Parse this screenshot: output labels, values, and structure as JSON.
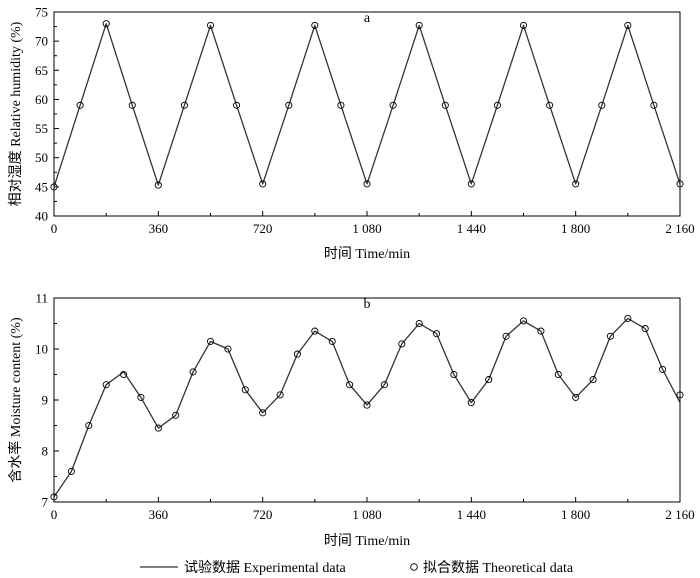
{
  "chart_data": [
    {
      "type": "line",
      "panel_label": "a",
      "xlabel": "时间 Time/min",
      "ylabel": "相对湿度 Relative humidity (%)",
      "xlim": [
        0,
        2160
      ],
      "ylim": [
        40,
        75
      ],
      "x_ticks": [
        0,
        360,
        720,
        1080,
        1440,
        1800,
        2160
      ],
      "x_tick_labels": [
        "0",
        "360",
        "720",
        "1 080",
        "1 440",
        "1 800",
        "2 160"
      ],
      "y_ticks": [
        40,
        45,
        50,
        55,
        60,
        65,
        70,
        75
      ],
      "y_tick_labels": [
        "40",
        "45",
        "50",
        "55",
        "60",
        "65",
        "70",
        "75"
      ],
      "grid": false,
      "series": [
        {
          "name": "试验数据 Experimental data",
          "style": "solid line",
          "x": [
            0,
            90,
            180,
            270,
            360,
            450,
            540,
            630,
            720,
            810,
            900,
            990,
            1080,
            1170,
            1260,
            1350,
            1440,
            1530,
            1620,
            1710,
            1800,
            1890,
            1980,
            2070,
            2160
          ],
          "y": [
            45.0,
            59.0,
            73.0,
            59.0,
            45.3,
            59.0,
            72.7,
            59.0,
            45.5,
            59.0,
            72.7,
            59.0,
            45.5,
            59.0,
            72.7,
            59.0,
            45.5,
            59.0,
            72.7,
            59.0,
            45.5,
            59.0,
            72.7,
            59.0,
            45.5
          ]
        },
        {
          "name": "拟合数据 Theoretical data",
          "style": "open circles",
          "x": [
            0,
            90,
            180,
            270,
            360,
            450,
            540,
            630,
            720,
            810,
            900,
            990,
            1080,
            1170,
            1260,
            1350,
            1440,
            1530,
            1620,
            1710,
            1800,
            1890,
            1980,
            2070,
            2160
          ],
          "y": [
            45.0,
            59.0,
            73.0,
            59.0,
            45.3,
            59.0,
            72.7,
            59.0,
            45.5,
            59.0,
            72.7,
            59.0,
            45.5,
            59.0,
            72.7,
            59.0,
            45.5,
            59.0,
            72.7,
            59.0,
            45.5,
            59.0,
            72.7,
            59.0,
            45.5
          ]
        }
      ]
    },
    {
      "type": "line",
      "panel_label": "b",
      "xlabel": "时间 Time/min",
      "ylabel": "含水率 Moisture content (%)",
      "xlim": [
        0,
        2160
      ],
      "ylim": [
        7,
        11
      ],
      "x_ticks": [
        0,
        360,
        720,
        1080,
        1440,
        1800,
        2160
      ],
      "x_tick_labels": [
        "0",
        "360",
        "720",
        "1 080",
        "1 440",
        "1 800",
        "2 160"
      ],
      "y_ticks": [
        7,
        8,
        9,
        10,
        11
      ],
      "y_tick_labels": [
        "7",
        "8",
        "9",
        "10",
        "11"
      ],
      "grid": false,
      "series": [
        {
          "name": "试验数据 Experimental data",
          "style": "solid line",
          "x": [
            0,
            60,
            120,
            180,
            240,
            300,
            360,
            420,
            480,
            540,
            600,
            660,
            720,
            780,
            840,
            900,
            960,
            1020,
            1080,
            1140,
            1200,
            1260,
            1320,
            1380,
            1440,
            1500,
            1560,
            1620,
            1680,
            1740,
            1800,
            1860,
            1920,
            1980,
            2040,
            2100,
            2160
          ],
          "y": [
            7.1,
            7.6,
            8.5,
            9.3,
            9.55,
            9.05,
            8.45,
            8.7,
            9.55,
            10.15,
            10.0,
            9.2,
            8.75,
            9.1,
            9.9,
            10.35,
            10.15,
            9.3,
            8.9,
            9.3,
            10.1,
            10.5,
            10.3,
            9.5,
            8.95,
            9.4,
            10.25,
            10.55,
            10.35,
            9.5,
            9.05,
            9.4,
            10.25,
            10.6,
            10.4,
            9.6,
            8.95
          ]
        },
        {
          "name": "拟合数据 Theoretical data",
          "style": "open circles",
          "x": [
            0,
            60,
            120,
            180,
            240,
            300,
            360,
            420,
            480,
            540,
            600,
            660,
            720,
            780,
            840,
            900,
            960,
            1020,
            1080,
            1140,
            1200,
            1260,
            1320,
            1380,
            1440,
            1500,
            1560,
            1620,
            1680,
            1740,
            1800,
            1860,
            1920,
            1980,
            2040,
            2100,
            2160
          ],
          "y": [
            7.1,
            7.6,
            8.5,
            9.3,
            9.5,
            9.05,
            8.45,
            8.7,
            9.55,
            10.15,
            10.0,
            9.2,
            8.75,
            9.1,
            9.9,
            10.35,
            10.15,
            9.3,
            8.9,
            9.3,
            10.1,
            10.5,
            10.3,
            9.5,
            8.95,
            9.4,
            10.25,
            10.55,
            10.35,
            9.5,
            9.05,
            9.4,
            10.25,
            10.6,
            10.4,
            9.6,
            9.1
          ]
        }
      ]
    }
  ],
  "legend": {
    "experimental_label": "试验数据 Experimental data",
    "theoretical_label": "拟合数据 Theoretical data"
  }
}
